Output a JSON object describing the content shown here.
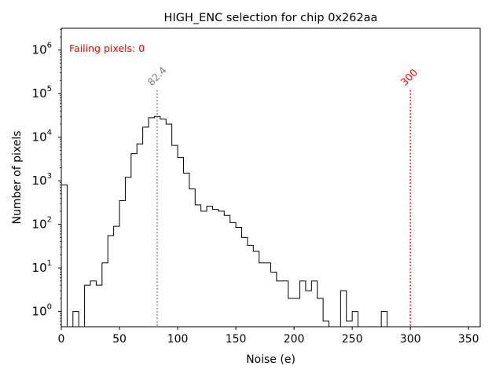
{
  "chart_data": {
    "type": "histogram",
    "title": "HIGH_ENC selection for chip 0x262aa",
    "xlabel": "Noise (e)",
    "ylabel": "Number of pixels",
    "xlim": [
      0,
      360
    ],
    "ylim_log10": [
      -0.35,
      6.5
    ],
    "yscale": "log",
    "grid": false,
    "x_ticks": [
      0,
      50,
      100,
      150,
      200,
      250,
      300,
      350
    ],
    "y_ticks": [
      {
        "exp": 0,
        "base": "10",
        "sup": "0"
      },
      {
        "exp": 1,
        "base": "10",
        "sup": "1"
      },
      {
        "exp": 2,
        "base": "10",
        "sup": "2"
      },
      {
        "exp": 3,
        "base": "10",
        "sup": "3"
      },
      {
        "exp": 4,
        "base": "10",
        "sup": "4"
      },
      {
        "exp": 5,
        "base": "10",
        "sup": "5"
      },
      {
        "exp": 6,
        "base": "10",
        "sup": "6"
      }
    ],
    "bin_width": 5,
    "bins": [
      [
        0,
        800
      ],
      [
        5,
        0
      ],
      [
        10,
        1
      ],
      [
        15,
        0
      ],
      [
        20,
        4
      ],
      [
        25,
        5
      ],
      [
        30,
        4
      ],
      [
        35,
        13
      ],
      [
        40,
        55
      ],
      [
        45,
        90
      ],
      [
        50,
        350
      ],
      [
        55,
        1200
      ],
      [
        60,
        4200
      ],
      [
        65,
        7000
      ],
      [
        70,
        17000
      ],
      [
        75,
        28000
      ],
      [
        80,
        30000
      ],
      [
        85,
        26000
      ],
      [
        90,
        20000
      ],
      [
        95,
        6500
      ],
      [
        100,
        3400
      ],
      [
        105,
        1500
      ],
      [
        110,
        650
      ],
      [
        115,
        280
      ],
      [
        120,
        200
      ],
      [
        125,
        260
      ],
      [
        130,
        220
      ],
      [
        135,
        200
      ],
      [
        140,
        160
      ],
      [
        145,
        110
      ],
      [
        150,
        85
      ],
      [
        155,
        50
      ],
      [
        160,
        33
      ],
      [
        165,
        24
      ],
      [
        170,
        13
      ],
      [
        175,
        13
      ],
      [
        180,
        8
      ],
      [
        185,
        5
      ],
      [
        190,
        5
      ],
      [
        195,
        2
      ],
      [
        200,
        2
      ],
      [
        205,
        5
      ],
      [
        210,
        3
      ],
      [
        215,
        5
      ],
      [
        220,
        2
      ],
      [
        225,
        0.6
      ],
      [
        230,
        0
      ],
      [
        235,
        0
      ],
      [
        240,
        3
      ],
      [
        245,
        0.6
      ],
      [
        250,
        1
      ],
      [
        255,
        0
      ],
      [
        260,
        0
      ],
      [
        265,
        0
      ],
      [
        270,
        0
      ],
      [
        275,
        1
      ],
      [
        280,
        0
      ]
    ],
    "annotations": [
      {
        "x": 82.4,
        "label": "82.4",
        "color": "#808080"
      },
      {
        "x": 300,
        "label": "300",
        "color": "#ff0000"
      }
    ],
    "failing_text": "Failing pixels: 0",
    "failing_color": "#ff0000"
  }
}
